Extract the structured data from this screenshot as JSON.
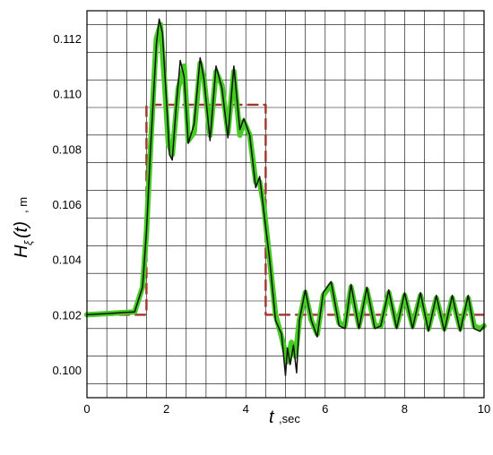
{
  "chart_data": {
    "type": "line",
    "title": "",
    "xlabel": "t",
    "xlabel_unit": ",sec",
    "ylabel": "H",
    "ylabel_sub": "ξ",
    "ylabel_arg": "(t)",
    "ylabel_unit": ", m",
    "xlim": [
      0,
      10
    ],
    "ylim": [
      0.099,
      0.113
    ],
    "xticks": [
      "0",
      "2",
      "4",
      "6",
      "8",
      "10"
    ],
    "yticks": [
      "0.100",
      "0.102",
      "0.104",
      "0.106",
      "0.108",
      "0.110",
      "0.112"
    ],
    "grid": true,
    "series": [
      {
        "style": "dashed-step",
        "color": "#a0352a",
        "x": [
          0,
          1.5,
          1.5,
          4.5,
          4.5,
          10
        ],
        "y": [
          0.102,
          0.102,
          0.1096,
          0.1096,
          0.102,
          0.102
        ]
      },
      {
        "style": "thick",
        "color": "#44cc22",
        "x": [
          0,
          1.2,
          1.4,
          1.5,
          1.6,
          1.7,
          1.75,
          1.85,
          1.95,
          2.05,
          2.15,
          2.3,
          2.45,
          2.55,
          2.7,
          2.85,
          2.95,
          3.1,
          3.25,
          3.4,
          3.55,
          3.7,
          3.85,
          3.95,
          4.1,
          4.25,
          4.35,
          4.45,
          4.6,
          4.75,
          4.9,
          5.05,
          5.15,
          5.25,
          5.35,
          5.5,
          5.65,
          5.8,
          5.95,
          6.15,
          6.35,
          6.5,
          6.65,
          6.85,
          7.05,
          7.25,
          7.4,
          7.6,
          7.8,
          8.0,
          8.2,
          8.4,
          8.6,
          8.8,
          9.0,
          9.2,
          9.4,
          9.6,
          9.75,
          9.9,
          10.0
        ],
        "y": [
          0.102,
          0.1021,
          0.103,
          0.105,
          0.108,
          0.1108,
          0.112,
          0.1125,
          0.1105,
          0.1082,
          0.1078,
          0.1102,
          0.111,
          0.1083,
          0.1086,
          0.1111,
          0.1105,
          0.1085,
          0.1108,
          0.1103,
          0.1086,
          0.1108,
          0.1085,
          0.109,
          0.1085,
          0.1068,
          0.1068,
          0.106,
          0.104,
          0.102,
          0.1012,
          0.1003,
          0.101,
          0.1005,
          0.1018,
          0.1028,
          0.1018,
          0.1013,
          0.1027,
          0.1031,
          0.1017,
          0.1016,
          0.103,
          0.1016,
          0.1029,
          0.1016,
          0.1016,
          0.1028,
          0.1016,
          0.1027,
          0.1016,
          0.1027,
          0.1015,
          0.1026,
          0.1015,
          0.1026,
          0.1015,
          0.1026,
          0.1016,
          0.1015,
          0.1016
        ]
      },
      {
        "style": "thin",
        "color": "#111111",
        "x": [
          0,
          1.2,
          1.4,
          1.5,
          1.6,
          1.7,
          1.75,
          1.82,
          1.9,
          2.0,
          2.08,
          2.15,
          2.25,
          2.35,
          2.45,
          2.55,
          2.7,
          2.85,
          2.95,
          3.1,
          3.25,
          3.4,
          3.55,
          3.7,
          3.85,
          3.95,
          4.1,
          4.25,
          4.35,
          4.45,
          4.6,
          4.75,
          4.9,
          5.0,
          5.05,
          5.12,
          5.2,
          5.28,
          5.35,
          5.5,
          5.65,
          5.8,
          5.95,
          6.15,
          6.35,
          6.5,
          6.65,
          6.85,
          7.05,
          7.25,
          7.4,
          7.6,
          7.8,
          8.0,
          8.2,
          8.4,
          8.6,
          8.8,
          9.0,
          9.2,
          9.4,
          9.6,
          9.75,
          9.9,
          10.0
        ],
        "y": [
          0.102,
          0.1021,
          0.103,
          0.105,
          0.108,
          0.1105,
          0.1118,
          0.1127,
          0.1122,
          0.1098,
          0.1078,
          0.1076,
          0.1096,
          0.1112,
          0.1106,
          0.1082,
          0.1089,
          0.1113,
          0.1105,
          0.1083,
          0.111,
          0.1102,
          0.1084,
          0.111,
          0.1087,
          0.1091,
          0.1085,
          0.1066,
          0.107,
          0.1058,
          0.104,
          0.1018,
          0.1013,
          0.0998,
          0.1008,
          0.1002,
          0.1009,
          0.0999,
          0.1018,
          0.1029,
          0.1018,
          0.1012,
          0.1028,
          0.1032,
          0.1016,
          0.1015,
          0.1031,
          0.1015,
          0.103,
          0.1015,
          0.1016,
          0.1029,
          0.1015,
          0.1028,
          0.1015,
          0.1028,
          0.1014,
          0.1027,
          0.1014,
          0.1027,
          0.1014,
          0.1027,
          0.1015,
          0.1014,
          0.1016
        ]
      }
    ]
  }
}
